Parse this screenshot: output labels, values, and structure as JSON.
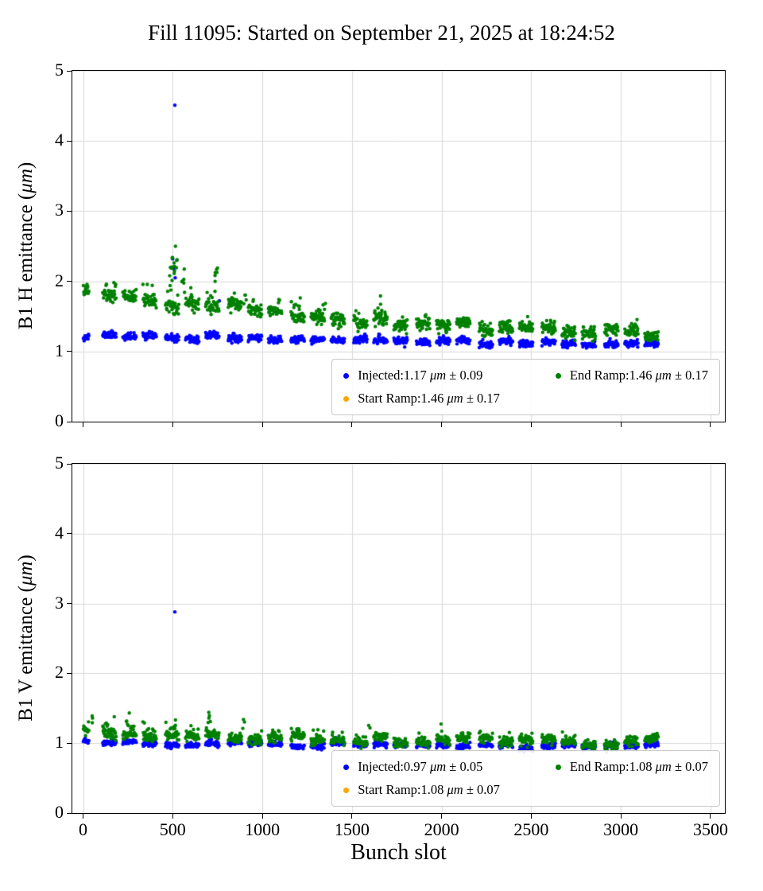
{
  "figure": {
    "title": "Fill 11095: Started on September 21, 2025 at 18:24:52",
    "xlabel": "Bunch slot"
  },
  "bunch_pattern": {
    "initial": {
      "start": 2,
      "n": 16,
      "step": 2
    },
    "groups": {
      "count": 9,
      "base": 110,
      "group_spacing": 350,
      "trains_per_group": 3,
      "train_spacing": 112,
      "bunches_per_train": 38,
      "bunch_step": 2
    }
  },
  "chart_data": [
    {
      "type": "scatter",
      "name": "B1 H",
      "ylabel": "B1 H emittance (μm)",
      "xlim": [
        -60,
        3580
      ],
      "ylim": [
        0,
        5
      ],
      "xticks": [
        0,
        500,
        1000,
        1500,
        2000,
        2500,
        3000,
        3500
      ],
      "yticks": [
        0,
        1,
        2,
        3,
        4,
        5
      ],
      "grid": true,
      "show_xticklabels": false,
      "seed": 11,
      "legend": {
        "position": "lower right",
        "columns": 2,
        "entries": [
          {
            "series": "Injected",
            "color": "#0000ff",
            "label": "Injected:1.17 μm ± 0.09",
            "mean": 1.17,
            "std": 0.09
          },
          {
            "series": "Start Ramp",
            "color": "#ffa500",
            "label": "Start Ramp:1.46 μm ± 0.17",
            "mean": 1.46,
            "std": 0.17
          },
          {
            "series": "End Ramp",
            "color": "#008000",
            "label": "End Ramp:1.46 μm ± 0.17",
            "mean": 1.46,
            "std": 0.17
          }
        ]
      },
      "series": [
        {
          "name": "Injected",
          "color": "#0000ff",
          "level": {
            "end": 1.09,
            "amp": 0.14,
            "tau": 2000
          },
          "jitter": 0.025,
          "train_sigma": 0.02,
          "outliers": [
            [
              512,
              4.51
            ],
            [
              500,
              2.32
            ],
            [
              506,
              2.18
            ],
            [
              514,
              2.05
            ],
            [
              760,
              1.72
            ]
          ],
          "spikes": []
        },
        {
          "name": "End Ramp",
          "color": "#008000",
          "level": {
            "end": 1.22,
            "amp": 0.66,
            "tau": 1400
          },
          "jitter": 0.045,
          "train_sigma": 0.035,
          "tail": {
            "p": 0.1,
            "max": 0.3
          },
          "spikes": [
            [
              492,
              9,
              1.85,
              2.35
            ],
            [
              515,
              8,
              1.9,
              2.52
            ],
            [
              556,
              6,
              1.8,
              2.2
            ],
            [
              600,
              4,
              1.75,
              2.05
            ],
            [
              745,
              6,
              1.75,
              2.25
            ],
            [
              905,
              4,
              1.65,
              1.95
            ],
            [
              1205,
              3,
              1.6,
              1.78
            ],
            [
              1345,
              3,
              1.55,
              1.72
            ],
            [
              1650,
              3,
              1.55,
              1.8
            ]
          ],
          "outliers": []
        }
      ]
    },
    {
      "type": "scatter",
      "name": "B1 V",
      "ylabel": "B1 V emittance (μm)",
      "xlim": [
        -60,
        3580
      ],
      "ylim": [
        0,
        5
      ],
      "xticks": [
        0,
        500,
        1000,
        1500,
        2000,
        2500,
        3000,
        3500
      ],
      "yticks": [
        0,
        1,
        2,
        3,
        4,
        5
      ],
      "grid": true,
      "show_xticklabels": true,
      "seed": 23,
      "legend": {
        "position": "lower right",
        "columns": 2,
        "entries": [
          {
            "series": "Injected",
            "color": "#0000ff",
            "label": "Injected:0.97 μm ± 0.05",
            "mean": 0.97,
            "std": 0.05
          },
          {
            "series": "Start Ramp",
            "color": "#ffa500",
            "label": "Start Ramp:1.08 μm ± 0.07",
            "mean": 1.08,
            "std": 0.07
          },
          {
            "series": "End Ramp",
            "color": "#008000",
            "label": "End Ramp:1.08 μm ± 0.07",
            "mean": 1.08,
            "std": 0.07
          }
        ]
      },
      "series": [
        {
          "name": "Injected",
          "color": "#0000ff",
          "level": {
            "end": 0.945,
            "amp": 0.055,
            "tau": 1800
          },
          "jitter": 0.02,
          "train_sigma": 0.015,
          "outliers": [
            [
              512,
              2.88
            ]
          ],
          "spikes": []
        },
        {
          "name": "End Ramp",
          "color": "#008000",
          "level": {
            "end": 1.0,
            "amp": 0.14,
            "tau": 1600
          },
          "jitter": 0.035,
          "train_sigma": 0.03,
          "tail": {
            "p": 0.12,
            "max": 0.2
          },
          "spikes": [
            [
              60,
              3,
              1.25,
              1.42
            ],
            [
              250,
              4,
              1.25,
              1.45
            ],
            [
              510,
              4,
              1.2,
              1.38
            ],
            [
              700,
              4,
              1.25,
              1.47
            ],
            [
              900,
              3,
              1.2,
              1.38
            ],
            [
              1200,
              3,
              1.18,
              1.35
            ],
            [
              1600,
              2,
              1.15,
              1.3
            ],
            [
              2000,
              2,
              1.15,
              1.28
            ]
          ],
          "outliers": []
        }
      ]
    }
  ]
}
